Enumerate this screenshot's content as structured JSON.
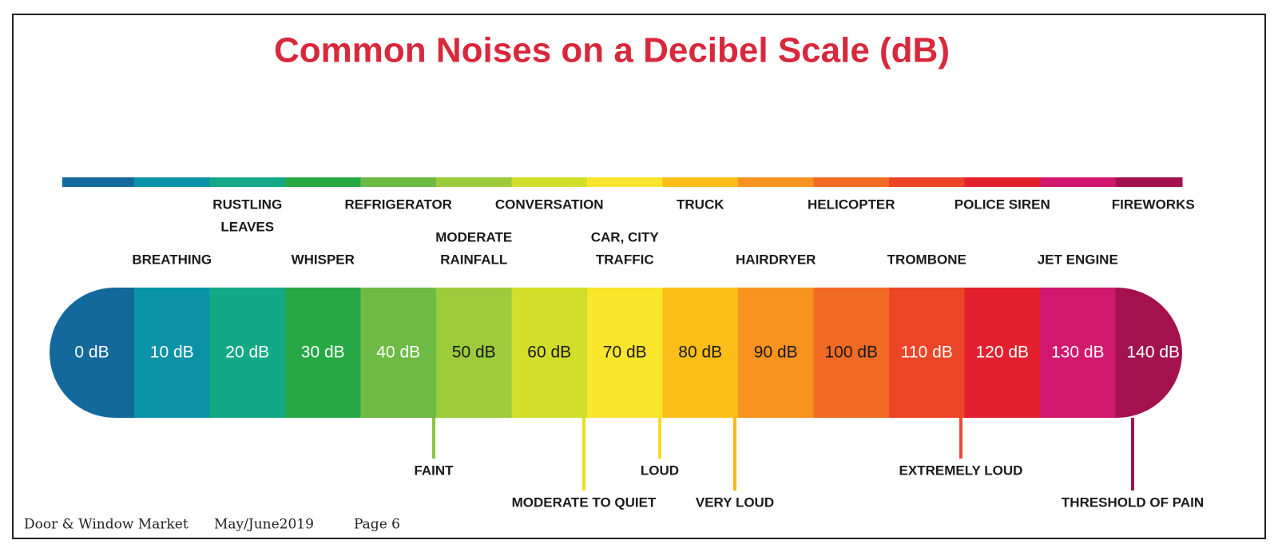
{
  "title": "Common Noises on a Decibel Scale (dB)",
  "scale": [
    {
      "label": "0 dB",
      "color": "#13699c",
      "text_color": "#ffffff"
    },
    {
      "label": "10 dB",
      "color": "#0a93a6",
      "text_color": "#ffffff",
      "noise": [
        "BREATHING"
      ]
    },
    {
      "label": "20 dB",
      "color": "#13a886",
      "text_color": "#ffffff",
      "noise": [
        "RUSTLING",
        "LEAVES"
      ]
    },
    {
      "label": "30 dB",
      "color": "#27a845",
      "text_color": "#ffffff",
      "noise": [
        "WHISPER"
      ]
    },
    {
      "label": "40 dB",
      "color": "#6dbb45",
      "text_color": "#ffffff",
      "noise": [
        "REFRIGERATOR"
      ]
    },
    {
      "label": "50 dB",
      "color": "#9ccb3b",
      "text_color": "#1a1a1a",
      "noise": [
        "MODERATE",
        "RAINFALL"
      ]
    },
    {
      "label": "60 dB",
      "color": "#d3de2b",
      "text_color": "#1a1a1a",
      "noise": [
        "CONVERSATION"
      ]
    },
    {
      "label": "70 dB",
      "color": "#f9e52b",
      "text_color": "#1a1a1a",
      "noise": [
        "CAR, CITY",
        "TRAFFIC"
      ]
    },
    {
      "label": "80 dB",
      "color": "#fcbe19",
      "text_color": "#1a1a1a",
      "noise": [
        "TRUCK"
      ]
    },
    {
      "label": "90 dB",
      "color": "#f7931e",
      "text_color": "#1a1a1a",
      "noise": [
        "HAIRDRYER"
      ]
    },
    {
      "label": "100 dB",
      "color": "#f26b25",
      "text_color": "#1a1a1a",
      "noise": [
        "HELICOPTER"
      ]
    },
    {
      "label": "110 dB",
      "color": "#ec4427",
      "text_color": "#ffffff",
      "noise": [
        "TROMBONE"
      ]
    },
    {
      "label": "120 dB",
      "color": "#e2202e",
      "text_color": "#ffffff",
      "noise": [
        "POLICE SIREN"
      ]
    },
    {
      "label": "130 dB",
      "color": "#d1176e",
      "text_color": "#ffffff",
      "noise": [
        "JET ENGINE"
      ]
    },
    {
      "label": "140 dB",
      "color": "#a3124f",
      "text_color": "#ffffff",
      "noise": [
        "FIREWORKS"
      ]
    }
  ],
  "descriptors": [
    {
      "label": "FAINT",
      "color": "#8cc63f"
    },
    {
      "label": "MODERATE TO QUIET",
      "color": "#e6df2a"
    },
    {
      "label": "LOUD",
      "color": "#f9d92b"
    },
    {
      "label": "VERY LOUD",
      "color": "#fbb519"
    },
    {
      "label": "EXTREMELY LOUD",
      "color": "#ea4a3a"
    },
    {
      "label": "THRESHOLD OF PAIN",
      "color": "#a3124f"
    }
  ],
  "footer": {
    "publication": "Door & Window Market",
    "issue": "May/June2019",
    "page": "Page 6"
  }
}
